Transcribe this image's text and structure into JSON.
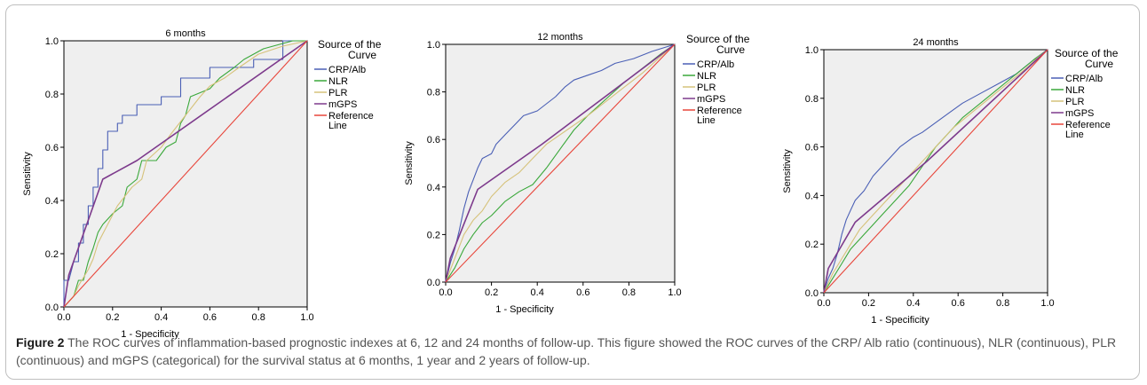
{
  "chart_data": [
    {
      "type": "line",
      "title": "6 months",
      "xlabel": "1 - Specificity",
      "ylabel": "Sensitivity",
      "xlim": [
        0,
        1
      ],
      "ylim": [
        0,
        1
      ],
      "ticks": [
        "0.0",
        "0.2",
        "0.4",
        "0.6",
        "0.8",
        "1.0"
      ],
      "legend_title": "Source of the Curve",
      "legend_placement": "right",
      "series": [
        {
          "name": "CRP/Alb",
          "color": "#4a5fb5",
          "points": [
            [
              0,
              0
            ],
            [
              0,
              0.1
            ],
            [
              0.02,
              0.1
            ],
            [
              0.04,
              0.17
            ],
            [
              0.06,
              0.17
            ],
            [
              0.06,
              0.24
            ],
            [
              0.08,
              0.24
            ],
            [
              0.08,
              0.31
            ],
            [
              0.1,
              0.31
            ],
            [
              0.1,
              0.38
            ],
            [
              0.12,
              0.38
            ],
            [
              0.12,
              0.45
            ],
            [
              0.14,
              0.45
            ],
            [
              0.14,
              0.52
            ],
            [
              0.16,
              0.52
            ],
            [
              0.16,
              0.59
            ],
            [
              0.18,
              0.59
            ],
            [
              0.18,
              0.66
            ],
            [
              0.22,
              0.66
            ],
            [
              0.22,
              0.69
            ],
            [
              0.24,
              0.69
            ],
            [
              0.24,
              0.72
            ],
            [
              0.3,
              0.72
            ],
            [
              0.3,
              0.76
            ],
            [
              0.4,
              0.76
            ],
            [
              0.4,
              0.79
            ],
            [
              0.48,
              0.79
            ],
            [
              0.48,
              0.86
            ],
            [
              0.6,
              0.86
            ],
            [
              0.6,
              0.9
            ],
            [
              0.78,
              0.9
            ],
            [
              0.78,
              0.93
            ],
            [
              0.9,
              0.93
            ],
            [
              0.9,
              1
            ],
            [
              1,
              1
            ]
          ]
        },
        {
          "name": "NLR",
          "color": "#3aa83a",
          "points": [
            [
              0,
              0
            ],
            [
              0.04,
              0.04
            ],
            [
              0.06,
              0.1
            ],
            [
              0.08,
              0.1
            ],
            [
              0.1,
              0.17
            ],
            [
              0.12,
              0.22
            ],
            [
              0.14,
              0.28
            ],
            [
              0.16,
              0.31
            ],
            [
              0.2,
              0.35
            ],
            [
              0.24,
              0.38
            ],
            [
              0.26,
              0.45
            ],
            [
              0.3,
              0.48
            ],
            [
              0.32,
              0.55
            ],
            [
              0.38,
              0.55
            ],
            [
              0.42,
              0.6
            ],
            [
              0.46,
              0.62
            ],
            [
              0.48,
              0.69
            ],
            [
              0.5,
              0.72
            ],
            [
              0.52,
              0.79
            ],
            [
              0.6,
              0.82
            ],
            [
              0.64,
              0.86
            ],
            [
              0.7,
              0.9
            ],
            [
              0.74,
              0.93
            ],
            [
              0.82,
              0.97
            ],
            [
              0.94,
              1
            ],
            [
              1,
              1
            ]
          ]
        },
        {
          "name": "PLR",
          "color": "#d6c27a",
          "points": [
            [
              0,
              0
            ],
            [
              0.04,
              0.04
            ],
            [
              0.06,
              0.08
            ],
            [
              0.1,
              0.14
            ],
            [
              0.12,
              0.18
            ],
            [
              0.14,
              0.24
            ],
            [
              0.18,
              0.31
            ],
            [
              0.22,
              0.38
            ],
            [
              0.28,
              0.45
            ],
            [
              0.32,
              0.48
            ],
            [
              0.34,
              0.55
            ],
            [
              0.4,
              0.6
            ],
            [
              0.44,
              0.65
            ],
            [
              0.5,
              0.72
            ],
            [
              0.56,
              0.79
            ],
            [
              0.6,
              0.83
            ],
            [
              0.66,
              0.86
            ],
            [
              0.72,
              0.9
            ],
            [
              0.8,
              0.95
            ],
            [
              0.9,
              0.98
            ],
            [
              1,
              1
            ]
          ]
        },
        {
          "name": "mGPS",
          "color": "#7d3a8c",
          "points": [
            [
              0,
              0
            ],
            [
              0.02,
              0.12
            ],
            [
              0.16,
              0.48
            ],
            [
              0.3,
              0.55
            ],
            [
              1,
              1
            ]
          ]
        },
        {
          "name": "Reference Line",
          "color": "#e8453a",
          "points": [
            [
              0,
              0
            ],
            [
              1,
              1
            ]
          ]
        }
      ]
    },
    {
      "type": "line",
      "title": "12 months",
      "xlabel": "1 - Specificity",
      "ylabel": "Sensitivity",
      "xlim": [
        0,
        1
      ],
      "ylim": [
        0,
        1
      ],
      "ticks": [
        "0.0",
        "0.2",
        "0.4",
        "0.6",
        "0.8",
        "1.0"
      ],
      "legend_title": "Source of the Curve",
      "legend_placement": "right",
      "series": [
        {
          "name": "CRP/Alb",
          "color": "#4a5fb5",
          "points": [
            [
              0,
              0
            ],
            [
              0.02,
              0.08
            ],
            [
              0.04,
              0.14
            ],
            [
              0.06,
              0.22
            ],
            [
              0.08,
              0.31
            ],
            [
              0.1,
              0.38
            ],
            [
              0.12,
              0.43
            ],
            [
              0.14,
              0.48
            ],
            [
              0.16,
              0.52
            ],
            [
              0.2,
              0.54
            ],
            [
              0.22,
              0.58
            ],
            [
              0.26,
              0.62
            ],
            [
              0.3,
              0.66
            ],
            [
              0.34,
              0.7
            ],
            [
              0.4,
              0.72
            ],
            [
              0.44,
              0.75
            ],
            [
              0.48,
              0.78
            ],
            [
              0.52,
              0.82
            ],
            [
              0.56,
              0.85
            ],
            [
              0.62,
              0.87
            ],
            [
              0.68,
              0.89
            ],
            [
              0.74,
              0.92
            ],
            [
              0.82,
              0.94
            ],
            [
              0.9,
              0.97
            ],
            [
              1,
              1
            ]
          ]
        },
        {
          "name": "NLR",
          "color": "#3aa83a",
          "points": [
            [
              0,
              0
            ],
            [
              0.04,
              0.06
            ],
            [
              0.08,
              0.14
            ],
            [
              0.12,
              0.2
            ],
            [
              0.16,
              0.25
            ],
            [
              0.2,
              0.28
            ],
            [
              0.26,
              0.34
            ],
            [
              0.32,
              0.38
            ],
            [
              0.38,
              0.41
            ],
            [
              0.44,
              0.48
            ],
            [
              0.5,
              0.56
            ],
            [
              0.56,
              0.64
            ],
            [
              0.62,
              0.7
            ],
            [
              0.7,
              0.77
            ],
            [
              0.78,
              0.84
            ],
            [
              0.86,
              0.9
            ],
            [
              0.94,
              0.96
            ],
            [
              1,
              1
            ]
          ]
        },
        {
          "name": "PLR",
          "color": "#d6c27a",
          "points": [
            [
              0,
              0
            ],
            [
              0.04,
              0.1
            ],
            [
              0.08,
              0.2
            ],
            [
              0.12,
              0.26
            ],
            [
              0.16,
              0.3
            ],
            [
              0.2,
              0.36
            ],
            [
              0.26,
              0.42
            ],
            [
              0.32,
              0.46
            ],
            [
              0.38,
              0.52
            ],
            [
              0.44,
              0.58
            ],
            [
              0.5,
              0.62
            ],
            [
              0.56,
              0.66
            ],
            [
              0.62,
              0.7
            ],
            [
              0.7,
              0.76
            ],
            [
              0.78,
              0.82
            ],
            [
              0.86,
              0.88
            ],
            [
              0.94,
              0.95
            ],
            [
              1,
              1
            ]
          ]
        },
        {
          "name": "mGPS",
          "color": "#7d3a8c",
          "points": [
            [
              0,
              0
            ],
            [
              0.02,
              0.1
            ],
            [
              0.14,
              0.39
            ],
            [
              0.42,
              0.58
            ],
            [
              1,
              1
            ]
          ]
        },
        {
          "name": "Reference Line",
          "color": "#e8453a",
          "points": [
            [
              0,
              0
            ],
            [
              1,
              1
            ]
          ]
        }
      ]
    },
    {
      "type": "line",
      "title": "24 months",
      "xlabel": "1 - Specificity",
      "ylabel": "Sensitivity",
      "xlim": [
        0,
        1
      ],
      "ylim": [
        0,
        1
      ],
      "ticks": [
        "0.0",
        "0.2",
        "0.4",
        "0.6",
        "0.8",
        "1.0"
      ],
      "legend_title": "Source of the Curve",
      "legend_placement": "right",
      "series": [
        {
          "name": "CRP/Alb",
          "color": "#4a5fb5",
          "points": [
            [
              0,
              0
            ],
            [
              0.02,
              0.06
            ],
            [
              0.04,
              0.1
            ],
            [
              0.06,
              0.16
            ],
            [
              0.08,
              0.24
            ],
            [
              0.1,
              0.3
            ],
            [
              0.12,
              0.34
            ],
            [
              0.14,
              0.38
            ],
            [
              0.18,
              0.42
            ],
            [
              0.22,
              0.48
            ],
            [
              0.26,
              0.52
            ],
            [
              0.3,
              0.56
            ],
            [
              0.34,
              0.6
            ],
            [
              0.4,
              0.64
            ],
            [
              0.44,
              0.66
            ],
            [
              0.5,
              0.7
            ],
            [
              0.56,
              0.74
            ],
            [
              0.62,
              0.78
            ],
            [
              0.7,
              0.82
            ],
            [
              0.78,
              0.86
            ],
            [
              0.86,
              0.9
            ],
            [
              0.94,
              0.96
            ],
            [
              1,
              1
            ]
          ]
        },
        {
          "name": "NLR",
          "color": "#3aa83a",
          "points": [
            [
              0,
              0
            ],
            [
              0.04,
              0.06
            ],
            [
              0.08,
              0.12
            ],
            [
              0.12,
              0.18
            ],
            [
              0.16,
              0.22
            ],
            [
              0.2,
              0.26
            ],
            [
              0.26,
              0.32
            ],
            [
              0.32,
              0.38
            ],
            [
              0.38,
              0.44
            ],
            [
              0.44,
              0.52
            ],
            [
              0.5,
              0.6
            ],
            [
              0.56,
              0.66
            ],
            [
              0.62,
              0.72
            ],
            [
              0.7,
              0.78
            ],
            [
              0.78,
              0.84
            ],
            [
              0.86,
              0.9
            ],
            [
              0.94,
              0.96
            ],
            [
              1,
              1
            ]
          ]
        },
        {
          "name": "PLR",
          "color": "#d6c27a",
          "points": [
            [
              0,
              0
            ],
            [
              0.04,
              0.08
            ],
            [
              0.08,
              0.14
            ],
            [
              0.12,
              0.2
            ],
            [
              0.16,
              0.26
            ],
            [
              0.22,
              0.32
            ],
            [
              0.28,
              0.38
            ],
            [
              0.34,
              0.44
            ],
            [
              0.4,
              0.5
            ],
            [
              0.46,
              0.56
            ],
            [
              0.52,
              0.62
            ],
            [
              0.58,
              0.68
            ],
            [
              0.66,
              0.74
            ],
            [
              0.74,
              0.8
            ],
            [
              0.82,
              0.86
            ],
            [
              0.9,
              0.92
            ],
            [
              0.96,
              0.97
            ],
            [
              1,
              1
            ]
          ]
        },
        {
          "name": "mGPS",
          "color": "#7d3a8c",
          "points": [
            [
              0,
              0
            ],
            [
              0.02,
              0.1
            ],
            [
              0.14,
              0.29
            ],
            [
              0.46,
              0.54
            ],
            [
              1,
              1
            ]
          ]
        },
        {
          "name": "Reference Line",
          "color": "#e8453a",
          "points": [
            [
              0,
              0
            ],
            [
              1,
              1
            ]
          ]
        }
      ]
    }
  ],
  "caption": {
    "label": "Figure 2",
    "text": "The ROC curves of inflammation-based prognostic indexes at 6, 12 and 24 months of follow-up. This figure showed the ROC curves of the CRP/ Alb ratio (continuous), NLR (continuous), PLR (continuous) and mGPS (categorical) for the survival status at 6 months, 1 year and 2 years of follow-up."
  }
}
